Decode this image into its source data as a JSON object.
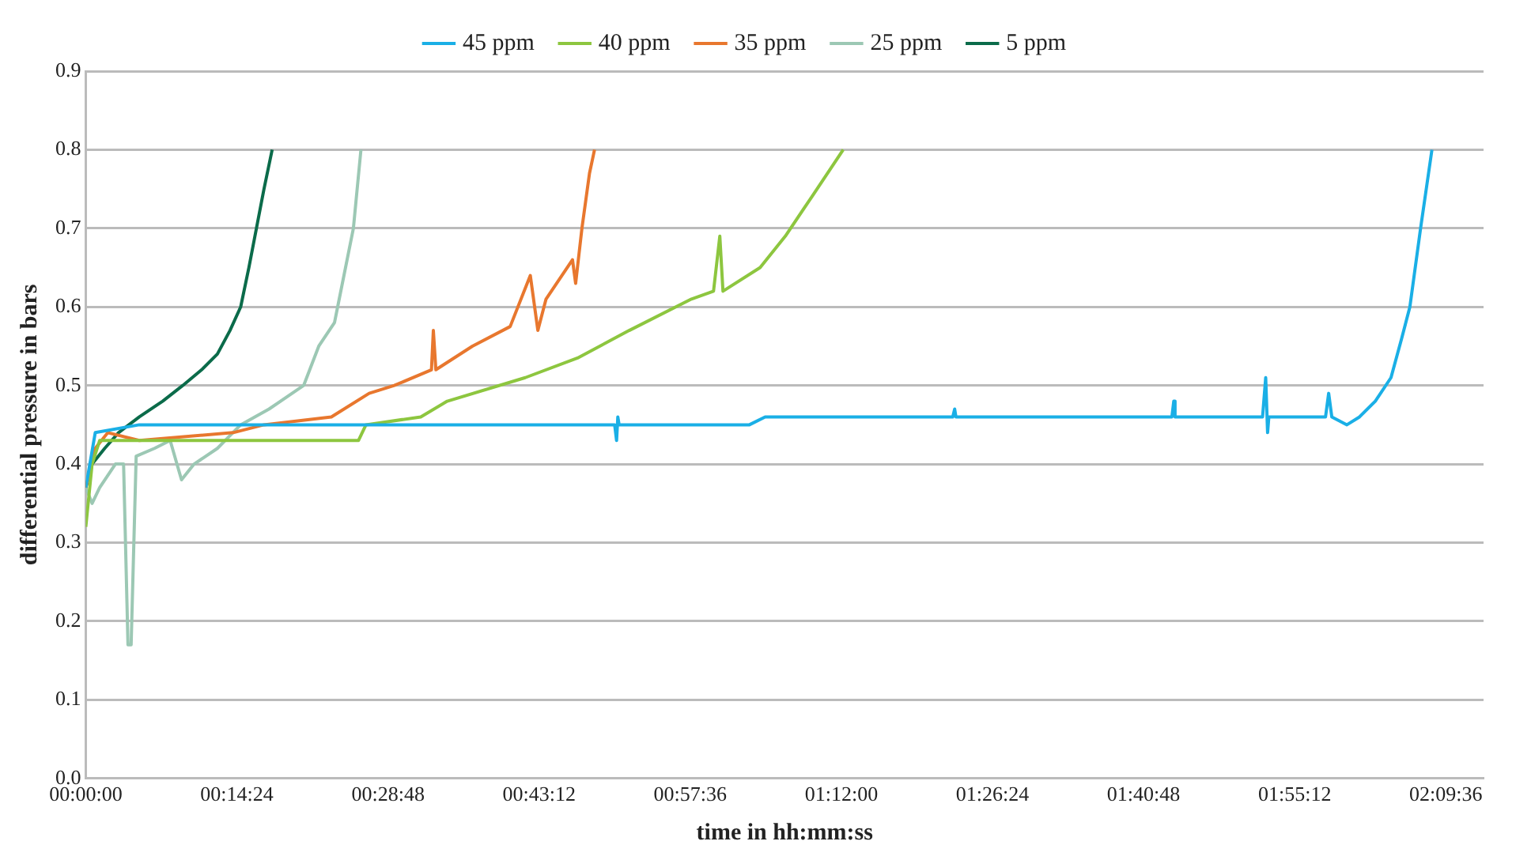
{
  "chart_data": {
    "type": "line",
    "xlabel": "time in hh:mm:ss",
    "ylabel": "differential pressure in bars",
    "xlim": [
      0,
      2.22
    ],
    "ylim": [
      0,
      0.9
    ],
    "xticks": [
      {
        "value": 0,
        "label": "00:00:00"
      },
      {
        "value": 0.24,
        "label": "00:14:24"
      },
      {
        "value": 0.48,
        "label": "00:28:48"
      },
      {
        "value": 0.72,
        "label": "00:43:12"
      },
      {
        "value": 0.96,
        "label": "00:57:36"
      },
      {
        "value": 1.2,
        "label": "01:12:00"
      },
      {
        "value": 1.44,
        "label": "01:26:24"
      },
      {
        "value": 1.68,
        "label": "01:40:48"
      },
      {
        "value": 1.92,
        "label": "01:55:12"
      },
      {
        "value": 2.16,
        "label": "02:09:36"
      }
    ],
    "yticks": [
      {
        "value": 0,
        "label": "0.0"
      },
      0.1,
      0.2,
      0.3,
      0.4,
      0.5,
      0.6,
      0.7,
      0.8,
      0.9
    ],
    "grid": "y",
    "legend": "top",
    "marker": "none",
    "line_style": "solid",
    "series": [
      {
        "name": "45 ppm",
        "color": "#1aafe6",
        "x": [
          0,
          0.015,
          0.085,
          0.83,
          0.84,
          0.843,
          0.845,
          0.847,
          0.85,
          1.054,
          1.079,
          1.377,
          1.38,
          1.382,
          1.725,
          1.728,
          1.73,
          1.869,
          1.874,
          1.877,
          1.879,
          1.884,
          1.969,
          1.974,
          1.979,
          2.003,
          2.023,
          2.048,
          2.073,
          2.09,
          2.103,
          2.12,
          2.138
        ],
        "values": [
          0.37,
          0.44,
          0.45,
          0.45,
          0.45,
          0.43,
          0.46,
          0.45,
          0.45,
          0.45,
          0.46,
          0.46,
          0.47,
          0.46,
          0.46,
          0.48,
          0.46,
          0.46,
          0.51,
          0.44,
          0.46,
          0.46,
          0.46,
          0.49,
          0.46,
          0.45,
          0.46,
          0.48,
          0.51,
          0.56,
          0.6,
          0.7,
          0.8
        ]
      },
      {
        "name": "40 ppm",
        "color": "#8dc63f",
        "x": [
          0,
          0.01,
          0.022,
          0.433,
          0.445,
          0.532,
          0.574,
          0.698,
          0.781,
          0.863,
          0.962,
          0.997,
          1.007,
          1.012,
          1.071,
          1.111,
          1.153,
          1.203
        ],
        "values": [
          0.32,
          0.4,
          0.43,
          0.43,
          0.45,
          0.46,
          0.48,
          0.51,
          0.535,
          0.57,
          0.61,
          0.62,
          0.69,
          0.62,
          0.65,
          0.69,
          0.74,
          0.8
        ]
      },
      {
        "name": "35 ppm",
        "color": "#e8772e",
        "x": [
          0,
          0.015,
          0.035,
          0.085,
          0.234,
          0.283,
          0.39,
          0.45,
          0.49,
          0.549,
          0.552,
          0.556,
          0.614,
          0.674,
          0.706,
          0.718,
          0.731,
          0.773,
          0.778,
          0.788,
          0.8,
          0.808
        ],
        "values": [
          0.37,
          0.42,
          0.44,
          0.43,
          0.44,
          0.45,
          0.46,
          0.49,
          0.5,
          0.52,
          0.57,
          0.52,
          0.55,
          0.575,
          0.64,
          0.57,
          0.61,
          0.66,
          0.63,
          0.7,
          0.77,
          0.8
        ]
      },
      {
        "name": "25 ppm",
        "color": "#9cc8b4",
        "x": [
          0,
          0.01,
          0.022,
          0.047,
          0.06,
          0.067,
          0.072,
          0.08,
          0.109,
          0.134,
          0.152,
          0.172,
          0.209,
          0.246,
          0.291,
          0.346,
          0.37,
          0.395,
          0.4,
          0.425,
          0.437
        ],
        "values": [
          0.37,
          0.35,
          0.37,
          0.4,
          0.4,
          0.17,
          0.17,
          0.41,
          0.42,
          0.43,
          0.38,
          0.4,
          0.42,
          0.45,
          0.47,
          0.5,
          0.55,
          0.58,
          0.6,
          0.7,
          0.8
        ]
      },
      {
        "name": "5 ppm",
        "color": "#0b6b4a",
        "x": [
          0,
          0.01,
          0.03,
          0.052,
          0.085,
          0.122,
          0.154,
          0.184,
          0.209,
          0.229,
          0.246,
          0.259,
          0.271,
          0.283,
          0.296
        ],
        "values": [
          0.37,
          0.4,
          0.42,
          0.44,
          0.46,
          0.48,
          0.5,
          0.52,
          0.54,
          0.57,
          0.6,
          0.65,
          0.7,
          0.75,
          0.8
        ]
      }
    ]
  }
}
